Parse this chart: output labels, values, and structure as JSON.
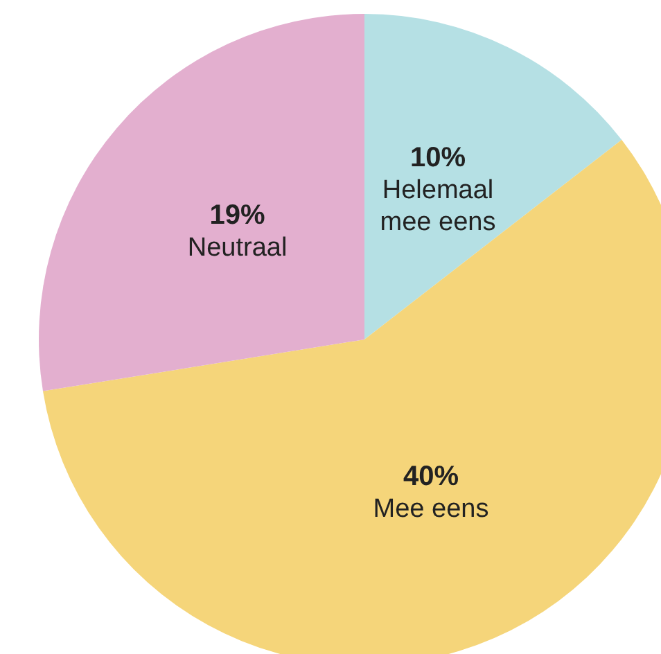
{
  "chart_data": {
    "type": "pie",
    "categories": [
      "Helemaal\nmee eens",
      "Mee eens",
      "Neutraal"
    ],
    "values": [
      10,
      40,
      19
    ],
    "colors": [
      "#b5e0e4",
      "#f5d57a",
      "#e3afcf"
    ],
    "value_labels": [
      "10%",
      "40%",
      "19%"
    ],
    "legend": false
  }
}
